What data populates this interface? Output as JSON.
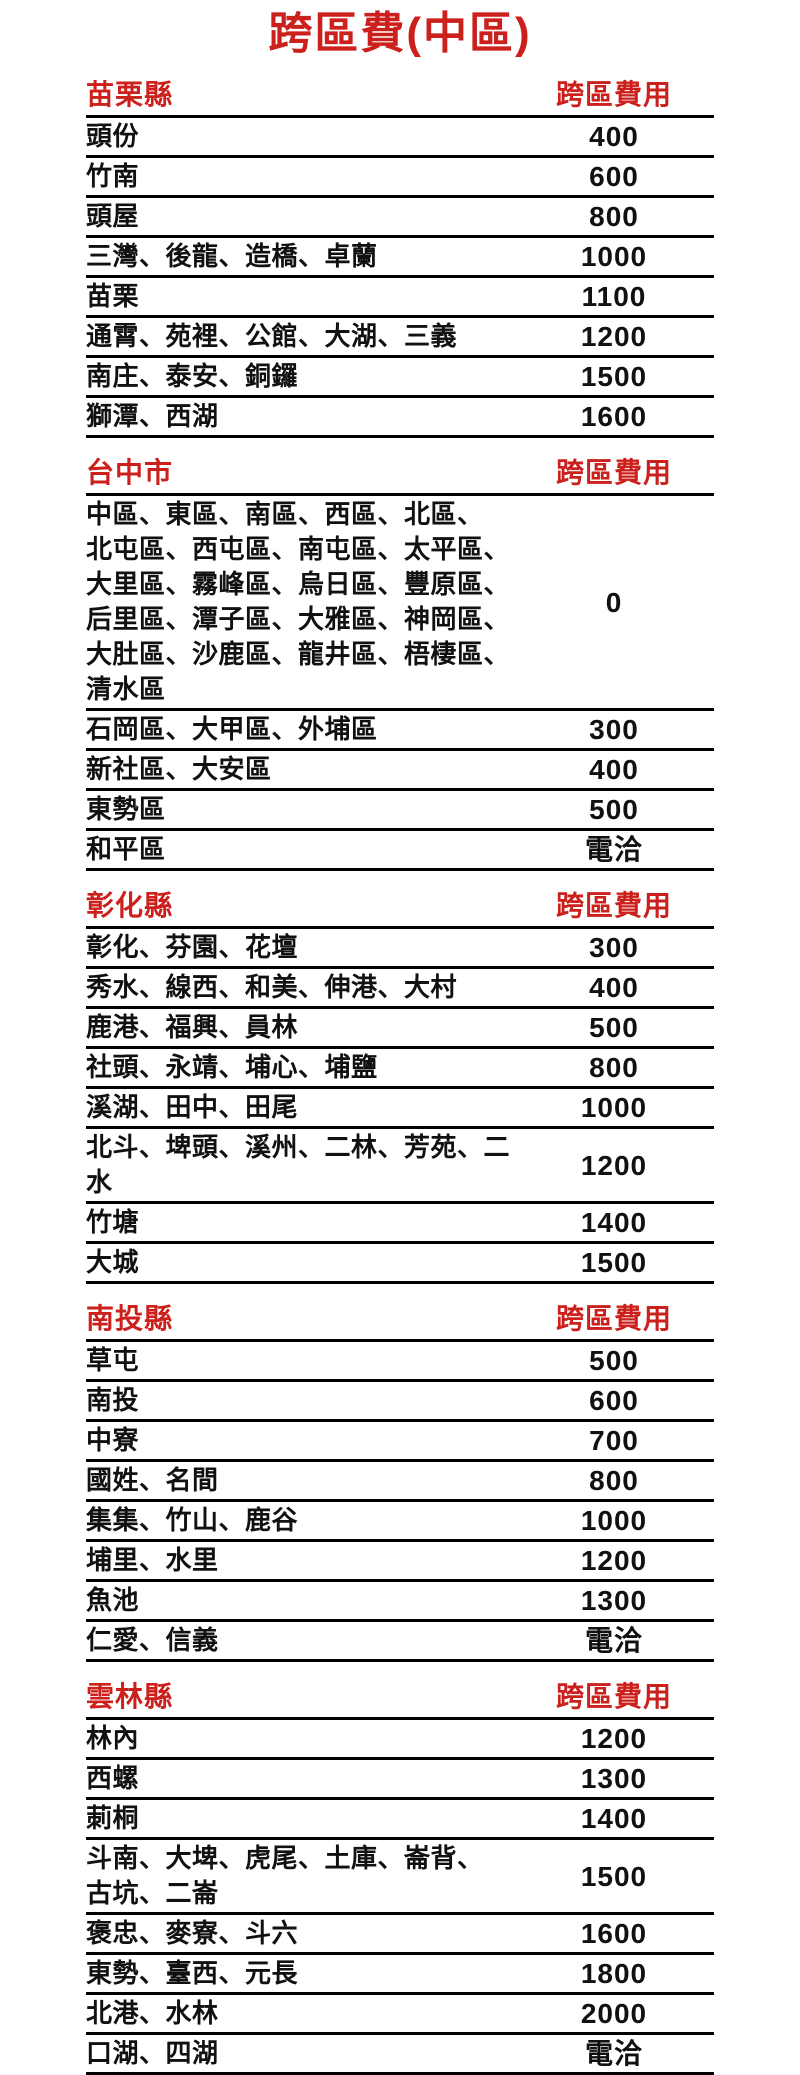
{
  "page": {
    "title": "跨區費(中區)",
    "fee_column_header": "跨區費用"
  },
  "colors": {
    "accent_red": "#cc201d",
    "text_black": "#111111",
    "rule_black": "#000000",
    "background": "#ffffff"
  },
  "sections": [
    {
      "name": "苗栗縣",
      "rows": [
        {
          "area": "頭份",
          "fee": "400"
        },
        {
          "area": "竹南",
          "fee": "600"
        },
        {
          "area": "頭屋",
          "fee": "800"
        },
        {
          "area": "三灣、後龍、造橋、卓蘭",
          "fee": "1000"
        },
        {
          "area": "苗栗",
          "fee": "1100"
        },
        {
          "area": "通霄、苑裡、公館、大湖、三義",
          "fee": "1200"
        },
        {
          "area": "南庄、泰安、銅鑼",
          "fee": "1500"
        },
        {
          "area": "獅潭、西湖",
          "fee": "1600"
        }
      ]
    },
    {
      "name": "台中市",
      "rows": [
        {
          "area": "中區、東區、南區、西區、北區、\n北屯區、西屯區、南屯區、太平區、\n大里區、霧峰區、烏日區、豐原區、\n后里區、潭子區、大雅區、神岡區、\n大肚區、沙鹿區、龍井區、梧棲區、\n清水區",
          "fee": "0"
        },
        {
          "area": "石岡區、大甲區、外埔區",
          "fee": "300"
        },
        {
          "area": "新社區、大安區",
          "fee": "400"
        },
        {
          "area": "東勢區",
          "fee": "500"
        },
        {
          "area": "和平區",
          "fee": "電洽"
        }
      ]
    },
    {
      "name": "彰化縣",
      "rows": [
        {
          "area": "彰化、芬園、花壇",
          "fee": "300"
        },
        {
          "area": "秀水、線西、和美、伸港、大村",
          "fee": "400"
        },
        {
          "area": "鹿港、福興、員林",
          "fee": "500"
        },
        {
          "area": "社頭、永靖、埔心、埔鹽",
          "fee": "800"
        },
        {
          "area": "溪湖、田中、田尾",
          "fee": "1000"
        },
        {
          "area": "北斗、埤頭、溪州、二林、芳苑、二水",
          "fee": "1200"
        },
        {
          "area": "竹塘",
          "fee": "1400"
        },
        {
          "area": "大城",
          "fee": "1500"
        }
      ]
    },
    {
      "name": "南投縣",
      "rows": [
        {
          "area": "草屯",
          "fee": "500"
        },
        {
          "area": "南投",
          "fee": "600"
        },
        {
          "area": "中寮",
          "fee": "700"
        },
        {
          "area": "國姓、名間",
          "fee": "800"
        },
        {
          "area": "集集、竹山、鹿谷",
          "fee": "1000"
        },
        {
          "area": "埔里、水里",
          "fee": "1200"
        },
        {
          "area": "魚池",
          "fee": "1300"
        },
        {
          "area": "仁愛、信義",
          "fee": "電洽"
        }
      ]
    },
    {
      "name": "雲林縣",
      "rows": [
        {
          "area": "林內",
          "fee": "1200"
        },
        {
          "area": "西螺",
          "fee": "1300"
        },
        {
          "area": "莿桐",
          "fee": "1400"
        },
        {
          "area": "斗南、大埤、虎尾、土庫、崙背、\n古坑、二崙",
          "fee": "1500"
        },
        {
          "area": "褒忠、麥寮、斗六",
          "fee": "1600"
        },
        {
          "area": "東勢、臺西、元長",
          "fee": "1800"
        },
        {
          "area": "北港、水林",
          "fee": "2000"
        },
        {
          "area": "口湖、四湖",
          "fee": "電洽"
        }
      ]
    }
  ]
}
